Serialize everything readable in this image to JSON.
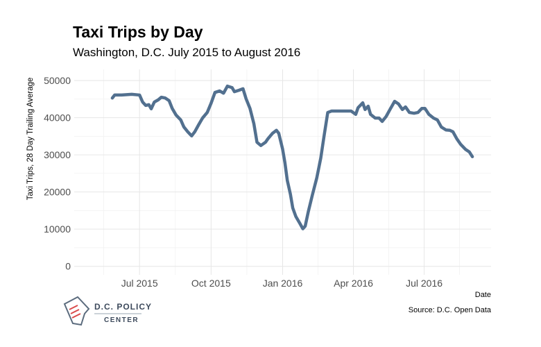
{
  "chart_data": {
    "type": "line",
    "title": "Taxi Trips by Day",
    "subtitle": "Washington, D.C. July 2015 to August 2016",
    "x_label": "Date",
    "y_label": "Taxi Trips, 28 Day Trailing Average",
    "source": "Source: D.C. Open Data",
    "grid": true,
    "xlim": [
      "2015-04-08",
      "2016-09-25"
    ],
    "xticks": [
      {
        "value": "2015-07-01",
        "label": "Jul 2015"
      },
      {
        "value": "2015-10-01",
        "label": "Oct 2015"
      },
      {
        "value": "2016-01-01",
        "label": "Jan 2016"
      },
      {
        "value": "2016-04-01",
        "label": "Apr 2016"
      },
      {
        "value": "2016-07-01",
        "label": "Jul 2016"
      }
    ],
    "ylim": [
      -2300,
      53000
    ],
    "yticks": [
      0,
      10000,
      20000,
      30000,
      40000,
      50000
    ],
    "x": [
      "2015-05-27",
      "2015-05-30",
      "2015-06-08",
      "2015-06-21",
      "2015-07-01",
      "2015-07-05",
      "2015-07-09",
      "2015-07-13",
      "2015-07-16",
      "2015-07-20",
      "2015-07-25",
      "2015-07-29",
      "2015-08-03",
      "2015-08-08",
      "2015-08-12",
      "2015-08-17",
      "2015-08-23",
      "2015-08-27",
      "2015-09-01",
      "2015-09-06",
      "2015-09-10",
      "2015-09-15",
      "2015-09-20",
      "2015-09-26",
      "2015-10-01",
      "2015-10-06",
      "2015-10-12",
      "2015-10-17",
      "2015-10-22",
      "2015-10-28",
      "2015-10-31",
      "2015-11-06",
      "2015-11-11",
      "2015-11-15",
      "2015-11-20",
      "2015-11-25",
      "2015-11-29",
      "2015-12-04",
      "2015-12-10",
      "2015-12-13",
      "2015-12-19",
      "2015-12-24",
      "2015-12-27",
      "2016-01-01",
      "2016-01-04",
      "2016-01-07",
      "2016-01-11",
      "2016-01-14",
      "2016-01-18",
      "2016-01-23",
      "2016-01-27",
      "2016-01-30",
      "2016-02-03",
      "2016-02-08",
      "2016-02-14",
      "2016-02-19",
      "2016-02-23",
      "2016-02-28",
      "2016-03-04",
      "2016-03-15",
      "2016-03-29",
      "2016-04-04",
      "2016-04-07",
      "2016-04-13",
      "2016-04-16",
      "2016-04-20",
      "2016-04-23",
      "2016-04-29",
      "2016-05-04",
      "2016-05-08",
      "2016-05-13",
      "2016-05-18",
      "2016-05-24",
      "2016-05-29",
      "2016-06-03",
      "2016-06-07",
      "2016-06-12",
      "2016-06-18",
      "2016-06-23",
      "2016-06-28",
      "2016-07-02",
      "2016-07-07",
      "2016-07-13",
      "2016-07-18",
      "2016-07-23",
      "2016-07-29",
      "2016-08-03",
      "2016-08-07",
      "2016-08-12",
      "2016-08-17",
      "2016-08-23",
      "2016-08-28",
      "2016-09-01"
    ],
    "series": [
      {
        "name": "Taxi Trips",
        "color": "#52708f",
        "values": [
          45300,
          46100,
          46100,
          46300,
          46100,
          44200,
          43300,
          43500,
          42400,
          44200,
          44800,
          45500,
          45300,
          44600,
          42500,
          40700,
          39400,
          37500,
          36200,
          35100,
          36200,
          38100,
          39900,
          41400,
          43900,
          46800,
          47200,
          46600,
          48500,
          48100,
          47000,
          47400,
          47800,
          45100,
          42500,
          38400,
          33400,
          32500,
          33400,
          34300,
          35800,
          36600,
          35800,
          31500,
          27800,
          23100,
          19400,
          15700,
          13400,
          11600,
          10100,
          10800,
          14700,
          19000,
          23900,
          29100,
          34700,
          41400,
          41800,
          41800,
          41800,
          40900,
          42700,
          44000,
          42200,
          43100,
          40900,
          39900,
          39900,
          39000,
          40300,
          42200,
          44400,
          43700,
          42200,
          42900,
          41400,
          41200,
          41400,
          42500,
          42500,
          40900,
          39900,
          39400,
          37500,
          36700,
          36600,
          36200,
          34300,
          32800,
          31500,
          30800,
          29500
        ]
      }
    ]
  },
  "logo": {
    "line1": "D.C. POLICY",
    "line2": "CENTER"
  }
}
